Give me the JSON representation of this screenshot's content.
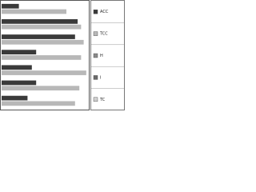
{
  "chart_data": {
    "type": "bar",
    "orientation": "horizontal",
    "categories": [
      null,
      null,
      null,
      null,
      null,
      null,
      null
    ],
    "series": [
      {
        "name": "ACC",
        "color": "#3a3a3a",
        "values": [
          20,
          88,
          85,
          40,
          35,
          40,
          30
        ]
      },
      {
        "name": "TCC",
        "color": "#b8b8b8",
        "values": [
          75,
          92,
          95,
          92,
          98,
          90,
          85
        ]
      },
      {
        "name": "H",
        "color": "#8a8a8a",
        "values": [
          null,
          null,
          null,
          null,
          null,
          null,
          null
        ]
      },
      {
        "name": "I",
        "color": "#6a6a6a",
        "values": [
          null,
          null,
          null,
          null,
          null,
          null,
          null
        ]
      },
      {
        "name": "TC",
        "color": "#d0d0d0",
        "values": [
          null,
          null,
          null,
          null,
          null,
          null,
          null
        ]
      }
    ],
    "xlim": [
      0,
      100
    ]
  }
}
